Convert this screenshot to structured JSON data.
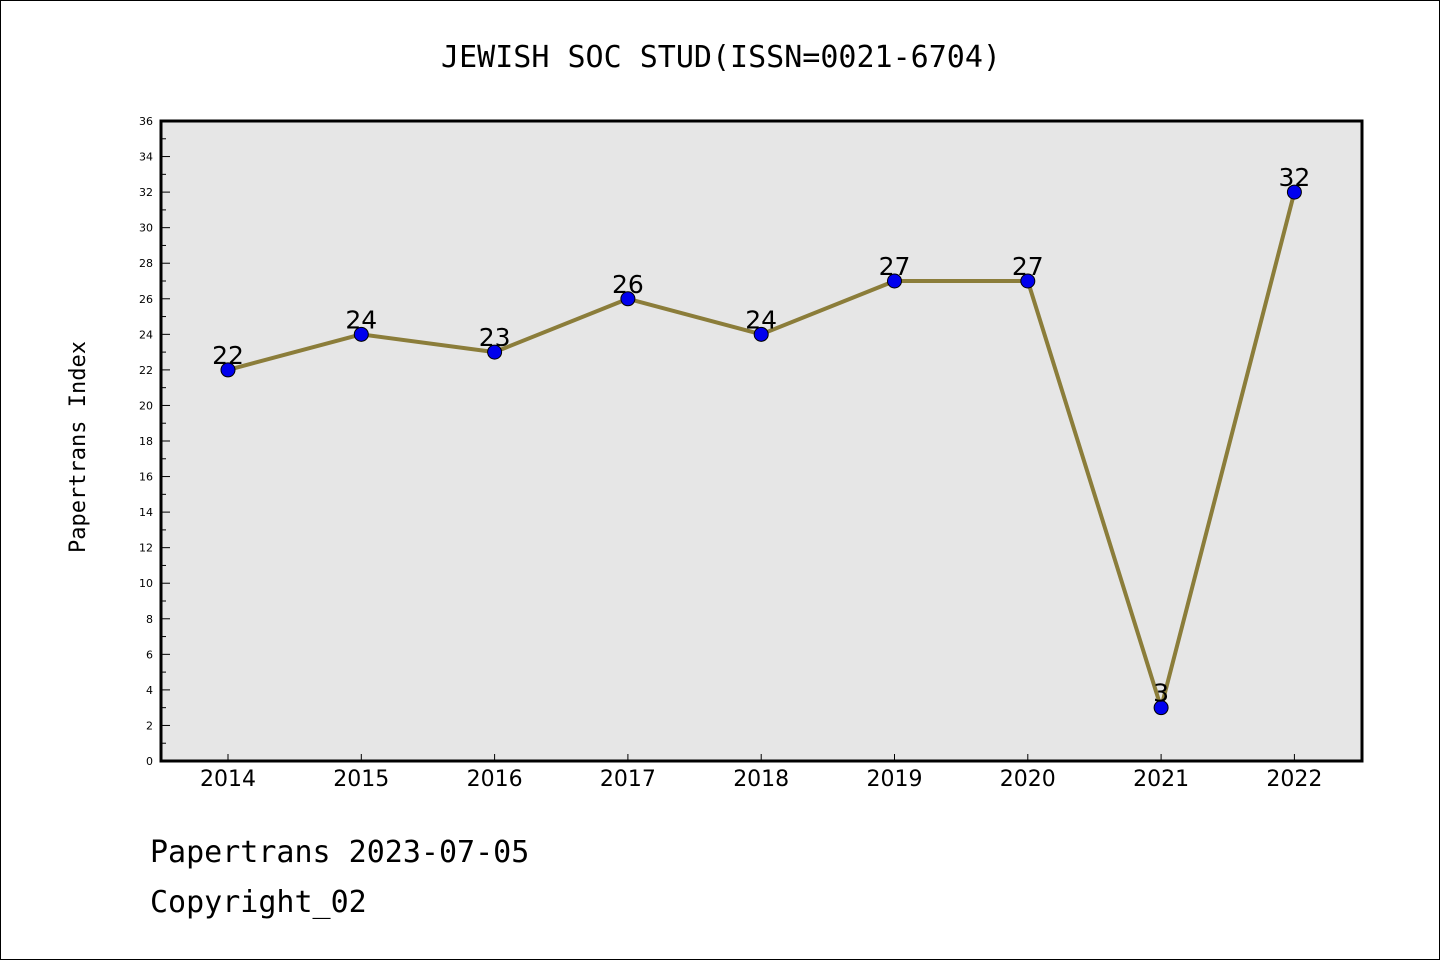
{
  "chart_data": {
    "type": "line",
    "title": "JEWISH SOC STUD(ISSN=0021-6704)",
    "xlabel": "",
    "ylabel": "Papertrans Index",
    "categories": [
      "2014",
      "2015",
      "2016",
      "2017",
      "2018",
      "2019",
      "2020",
      "2021",
      "2022"
    ],
    "series": [
      {
        "values": [
          22,
          24,
          23,
          26,
          24,
          27,
          27,
          3,
          32
        ],
        "line_color": "#8b7d3a",
        "marker_color": "#0000ee"
      }
    ],
    "data_labels": [
      "22",
      "24",
      "23",
      "26",
      "24",
      "27",
      "27",
      "3",
      "32"
    ],
    "ylim": [
      0,
      36
    ],
    "yticks": [
      0,
      2,
      4,
      6,
      8,
      10,
      12,
      14,
      16,
      18,
      20,
      22,
      24,
      26,
      28,
      30,
      32,
      34,
      36
    ],
    "plot_background": "#e6e6e6",
    "grid": false
  },
  "footer": {
    "line1": "Papertrans 2023-07-05",
    "line2": "Copyright_02"
  }
}
